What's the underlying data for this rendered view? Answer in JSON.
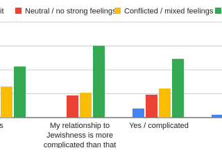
{
  "chart_data": {
    "type": "bar",
    "categories": [
      "es",
      "My relationship to Jewishness is more complicated than that",
      "Yes / complicated",
      null
    ],
    "series": [
      {
        "name": "it",
        "color": "#4285f4",
        "values": [
          null,
          0,
          0.38,
          0.12
        ]
      },
      {
        "name": "Neutral / no strong feelings",
        "color": "#ea4335",
        "values": [
          null,
          0.93,
          0.96,
          null
        ]
      },
      {
        "name": "Conflicted / mixed feelings",
        "color": "#fbbc04",
        "values": [
          1.3,
          1.04,
          1.22,
          null
        ]
      },
      {
        "color": "#34a853",
        "values": [
          2.14,
          3.01,
          2.46,
          null
        ]
      }
    ],
    "ylim": [
      0,
      4
    ],
    "yticks": [
      0,
      1,
      2,
      3,
      4
    ],
    "grid": true
  }
}
